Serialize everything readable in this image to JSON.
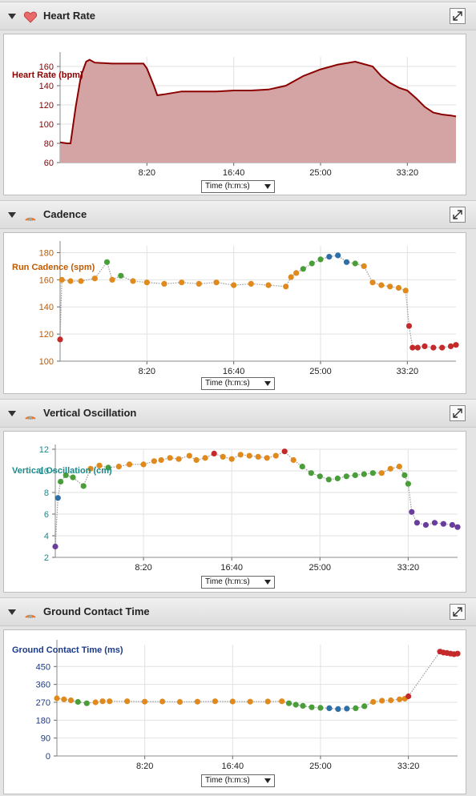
{
  "colors": {
    "heart": "#8b0000",
    "heart_fill": "#d4a3a3",
    "cadence_label": "#c05a00",
    "vo_label": "#1a8a8a",
    "gct_label": "#1a3a8a",
    "zone_red": "#c42a2a",
    "zone_orange": "#e08a1e",
    "zone_green": "#4a9e3a",
    "zone_blue": "#2f6fa8",
    "zone_purple": "#6a3c9c"
  },
  "icons": {
    "heart": "heart-icon",
    "sensor": "sensor-icon",
    "expand": "expand-icon",
    "collapse": "triangle-down-icon"
  },
  "panels": [
    {
      "title": "Heart Rate",
      "select_label": "Time (h:m:s)",
      "chart_data": {
        "type": "area",
        "ylabel": "Heart Rate (bpm)",
        "ylim": [
          60,
          170
        ],
        "yticks": [
          60,
          80,
          100,
          120,
          140,
          160
        ],
        "xlim": [
          0,
          2280
        ],
        "xticks": [
          "8:20",
          "16:40",
          "25:00",
          "33:20"
        ],
        "xtick_values": [
          500,
          1000,
          1500,
          2000
        ],
        "grid": true,
        "series": [
          {
            "x": [
              0,
              40,
              60,
              90,
              120,
              150,
              170,
              200,
              300,
              400,
              480,
              500,
              540,
              560,
              600,
              700,
              800,
              900,
              1000,
              1100,
              1200,
              1300,
              1400,
              1500,
              1600,
              1700,
              1800,
              1850,
              1900,
              1950,
              2000,
              2050,
              2100,
              2150,
              2200,
              2250,
              2280
            ],
            "y": [
              81,
              80,
              80,
              118,
              150,
              165,
              167,
              164,
              163,
              163,
              163,
              158,
              140,
              130,
              131,
              134,
              134,
              134,
              135,
              135,
              136,
              140,
              150,
              157,
              162,
              165,
              160,
              150,
              143,
              138,
              135,
              127,
              118,
              112,
              110,
              109,
              108
            ]
          }
        ]
      }
    },
    {
      "title": "Cadence",
      "select_label": "Time (h:m:s)",
      "chart_data": {
        "type": "scatter",
        "ylabel": "Run Cadence (spm)",
        "ylim": [
          100,
          185
        ],
        "yticks": [
          100,
          120,
          140,
          160,
          180
        ],
        "xlim": [
          0,
          2280
        ],
        "xticks": [
          "8:20",
          "16:40",
          "25:00",
          "33:20"
        ],
        "xtick_values": [
          500,
          1000,
          1500,
          2000
        ],
        "grid": true,
        "series": [
          {
            "x": [
              0,
              10,
              60,
              120,
              200,
              270,
              300,
              350,
              420,
              500,
              600,
              700,
              800,
              900,
              1000,
              1100,
              1200,
              1300,
              1330,
              1360,
              1400,
              1450,
              1500,
              1550,
              1600,
              1650,
              1700,
              1750,
              1800,
              1850,
              1900,
              1950,
              1990,
              2010,
              2030,
              2060,
              2100,
              2150,
              2200,
              2250,
              2280
            ],
            "y": [
              116,
              160,
              159,
              159,
              161,
              173,
              160,
              163,
              159,
              158,
              157,
              158,
              157,
              158,
              156,
              157,
              156,
              155,
              162,
              165,
              168,
              172,
              175,
              177,
              178,
              173,
              172,
              170,
              158,
              156,
              155,
              154,
              152,
              126,
              110,
              110,
              111,
              110,
              110,
              111,
              112
            ],
            "zones": [
              "red",
              "orange",
              "orange",
              "orange",
              "orange",
              "green",
              "orange",
              "green",
              "orange",
              "orange",
              "orange",
              "orange",
              "orange",
              "orange",
              "orange",
              "orange",
              "orange",
              "orange",
              "orange",
              "orange",
              "green",
              "green",
              "green",
              "blue",
              "blue",
              "blue",
              "green",
              "orange",
              "orange",
              "orange",
              "orange",
              "orange",
              "orange",
              "red",
              "red",
              "red",
              "red",
              "red",
              "red",
              "red",
              "red"
            ]
          }
        ]
      }
    },
    {
      "title": "Vertical Oscillation",
      "select_label": "Time (h:m:s)",
      "chart_data": {
        "type": "scatter",
        "ylabel": "Vertical Oscillation (cm)",
        "ylim": [
          2,
          12
        ],
        "yticks": [
          2,
          4,
          6,
          8,
          10,
          12
        ],
        "xlim": [
          0,
          2280
        ],
        "xticks": [
          "8:20",
          "16:40",
          "25:00",
          "33:20"
        ],
        "xtick_values": [
          500,
          1000,
          1500,
          2000
        ],
        "grid": true,
        "series": [
          {
            "x": [
              0,
              15,
              30,
              60,
              100,
              160,
              200,
              250,
              300,
              360,
              420,
              500,
              560,
              600,
              650,
              700,
              760,
              800,
              850,
              900,
              950,
              1000,
              1050,
              1100,
              1150,
              1200,
              1250,
              1300,
              1350,
              1400,
              1450,
              1500,
              1550,
              1600,
              1650,
              1700,
              1750,
              1800,
              1850,
              1900,
              1950,
              1980,
              2000,
              2020,
              2050,
              2100,
              2150,
              2200,
              2250,
              2280
            ],
            "y": [
              3,
              7.5,
              9,
              9.6,
              9.4,
              8.6,
              10.2,
              10.5,
              10.3,
              10.4,
              10.6,
              10.6,
              10.9,
              11,
              11.2,
              11.1,
              11.4,
              11,
              11.2,
              11.6,
              11.3,
              11.1,
              11.5,
              11.4,
              11.3,
              11.2,
              11.4,
              11.8,
              11,
              10.4,
              9.8,
              9.5,
              9.2,
              9.3,
              9.5,
              9.6,
              9.7,
              9.8,
              9.8,
              10.2,
              10.4,
              9.6,
              8.8,
              6.2,
              5.2,
              5.0,
              5.2,
              5.1,
              5.0,
              4.8
            ],
            "zones": [
              "purple",
              "blue",
              "green",
              "green",
              "green",
              "green",
              "orange",
              "orange",
              "green",
              "orange",
              "orange",
              "orange",
              "orange",
              "orange",
              "orange",
              "orange",
              "orange",
              "orange",
              "orange",
              "red",
              "orange",
              "orange",
              "orange",
              "orange",
              "orange",
              "orange",
              "orange",
              "red",
              "orange",
              "green",
              "green",
              "green",
              "green",
              "green",
              "green",
              "green",
              "green",
              "green",
              "orange",
              "orange",
              "orange",
              "green",
              "green",
              "purple",
              "purple",
              "purple",
              "purple",
              "purple",
              "purple",
              "purple"
            ]
          }
        ]
      }
    },
    {
      "title": "Ground Contact Time",
      "select_label": "Time (h:m:s)",
      "chart_data": {
        "type": "scatter",
        "ylabel": "Ground Contact Time (ms)",
        "ylim": [
          0,
          560
        ],
        "yticks": [
          0,
          90,
          180,
          270,
          360,
          450
        ],
        "xlim": [
          0,
          2280
        ],
        "xticks": [
          "8:20",
          "16:40",
          "25:00",
          "33:20"
        ],
        "xtick_values": [
          500,
          1000,
          1500,
          2000
        ],
        "grid": true,
        "series": [
          {
            "x": [
              0,
              40,
              80,
              120,
              170,
              220,
              260,
              300,
              400,
              500,
              600,
              700,
              800,
              900,
              1000,
              1100,
              1200,
              1280,
              1320,
              1360,
              1400,
              1450,
              1500,
              1550,
              1600,
              1650,
              1700,
              1750,
              1800,
              1850,
              1900,
              1950,
              1980,
              2000,
              2180,
              2200,
              2220,
              2240,
              2260,
              2280
            ],
            "y": [
              290,
              285,
              280,
              272,
              265,
              270,
              275,
              275,
              275,
              273,
              274,
              272,
              273,
              275,
              274,
              273,
              274,
              275,
              265,
              258,
              252,
              245,
              242,
              240,
              236,
              238,
              240,
              250,
              272,
              278,
              280,
              285,
              288,
              300,
              525,
              520,
              518,
              515,
              512,
              515
            ],
            "zones": [
              "orange",
              "orange",
              "orange",
              "green",
              "green",
              "orange",
              "orange",
              "orange",
              "orange",
              "orange",
              "orange",
              "orange",
              "orange",
              "orange",
              "orange",
              "orange",
              "orange",
              "orange",
              "green",
              "green",
              "green",
              "green",
              "green",
              "blue",
              "blue",
              "blue",
              "green",
              "green",
              "orange",
              "orange",
              "orange",
              "orange",
              "orange",
              "red",
              "red",
              "red",
              "red",
              "red",
              "red",
              "red"
            ]
          }
        ]
      }
    }
  ]
}
